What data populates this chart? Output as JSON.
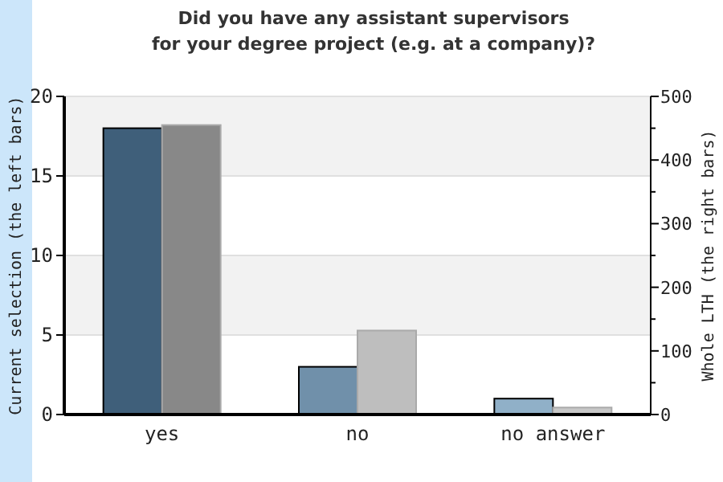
{
  "chart_data": {
    "type": "bar",
    "title": "Did you have any assistant supervisors\nfor your degree project (e.g. at a company)?",
    "ylabel": "Current selection (the left bars)",
    "y2label": "Whole LTH (the right bars)",
    "categories": [
      "yes",
      "no",
      "no answer"
    ],
    "series": [
      {
        "colors": [
          "#3f5f7a",
          "#7090aa",
          "#90b0c8"
        ],
        "values": [
          18,
          3,
          1
        ]
      },
      {
        "axis": "y2",
        "colors": [
          "#888888",
          "#bebebe",
          "#c8c8c8"
        ],
        "values": [
          455,
          132,
          11
        ]
      }
    ],
    "ylim": [
      0,
      20
    ],
    "yticks": [
      0,
      5,
      10,
      15,
      20
    ],
    "y2lim": [
      0,
      500
    ],
    "y2ticks": [
      0,
      {
        "value": 50,
        "label": null
      },
      100,
      {
        "value": 150,
        "label": null
      },
      200,
      {
        "value": 250,
        "label": null
      },
      300,
      {
        "value": 350,
        "label": null
      },
      400,
      {
        "value": 450,
        "label": null
      },
      500
    ],
    "grid": "y"
  }
}
